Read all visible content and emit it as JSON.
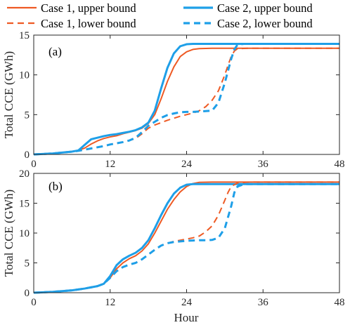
{
  "chart_data": [
    {
      "panel_label": "(a)",
      "type": "line",
      "xlabel": "",
      "ylabel": "Total CCE (GWh)",
      "xlim": [
        0,
        48
      ],
      "ylim": [
        0,
        15
      ],
      "xticks": [
        0,
        12,
        24,
        36,
        48
      ],
      "yticks": [
        0,
        5,
        10,
        15
      ],
      "grid": false,
      "series": [
        {
          "name": "Case 1, upper bound",
          "color": "#EE5A24",
          "style": "solid",
          "x": [
            0,
            3,
            6,
            7,
            8,
            9,
            10,
            11,
            12,
            13,
            14,
            15,
            16,
            17,
            18,
            19,
            20,
            21,
            22,
            23,
            24,
            25,
            26,
            28,
            32,
            48
          ],
          "y": [
            0,
            0.12,
            0.35,
            0.5,
            0.8,
            1.3,
            1.7,
            2.0,
            2.2,
            2.35,
            2.6,
            2.8,
            3.0,
            3.3,
            3.9,
            5.0,
            7.0,
            9.2,
            11.0,
            12.3,
            12.9,
            13.2,
            13.3,
            13.35,
            13.35,
            13.35
          ]
        },
        {
          "name": "Case 2, upper bound",
          "color": "#1E9FE8",
          "style": "solid",
          "x": [
            0,
            3,
            6,
            7,
            8,
            9,
            10,
            11,
            12,
            13,
            14,
            15,
            16,
            17,
            18,
            19,
            20,
            21,
            22,
            23,
            24,
            25,
            26,
            28,
            32,
            48
          ],
          "y": [
            0,
            0.12,
            0.35,
            0.5,
            1.2,
            1.9,
            2.1,
            2.3,
            2.45,
            2.55,
            2.7,
            2.85,
            3.05,
            3.4,
            4.0,
            5.5,
            8.3,
            10.9,
            12.7,
            13.6,
            13.85,
            13.9,
            13.9,
            13.9,
            13.9,
            13.9
          ]
        },
        {
          "name": "Case 1, lower bound",
          "color": "#EE5A24",
          "style": "dashed",
          "x": [
            0,
            3,
            6,
            7,
            8,
            9,
            10,
            11,
            12,
            13,
            14,
            15,
            16,
            17,
            18,
            19,
            20,
            21,
            22,
            23,
            24,
            25,
            26,
            27,
            28,
            29,
            30,
            30.5,
            31,
            31.5,
            32,
            34,
            48
          ],
          "y": [
            0,
            0.12,
            0.35,
            0.45,
            0.6,
            0.75,
            0.9,
            1.05,
            1.25,
            1.4,
            1.55,
            1.75,
            2.0,
            2.6,
            3.3,
            3.7,
            4.0,
            4.3,
            4.55,
            4.8,
            5.0,
            5.2,
            5.5,
            6.0,
            6.8,
            8.0,
            10.0,
            11.2,
            12.3,
            13.0,
            13.3,
            13.35,
            13.35
          ]
        },
        {
          "name": "Case 2, lower bound",
          "color": "#1E9FE8",
          "style": "dashed",
          "x": [
            0,
            3,
            6,
            7,
            8,
            9,
            10,
            11,
            12,
            13,
            14,
            15,
            16,
            17,
            18,
            19,
            20,
            21,
            22,
            23,
            24,
            25,
            26,
            27,
            28,
            29,
            30,
            31,
            31.5,
            32,
            33,
            48
          ],
          "y": [
            0,
            0.12,
            0.35,
            0.45,
            0.6,
            0.75,
            0.9,
            1.05,
            1.25,
            1.4,
            1.55,
            1.75,
            2.1,
            2.8,
            3.6,
            4.1,
            4.6,
            4.95,
            5.15,
            5.3,
            5.35,
            5.35,
            5.4,
            5.45,
            5.5,
            6.5,
            9.0,
            12.0,
            13.2,
            13.8,
            13.9,
            13.9
          ]
        }
      ]
    },
    {
      "panel_label": "(b)",
      "type": "line",
      "xlabel": "Hour",
      "ylabel": "Total CCE (GWh)",
      "xlim": [
        0,
        48
      ],
      "ylim": [
        0,
        20
      ],
      "xticks": [
        0,
        12,
        24,
        36,
        48
      ],
      "yticks": [
        0,
        5,
        10,
        15,
        20
      ],
      "grid": false,
      "series": [
        {
          "name": "Case 1, upper bound",
          "color": "#EE5A24",
          "style": "solid",
          "x": [
            0,
            3,
            6,
            8,
            10,
            11,
            12,
            13,
            14,
            15,
            16,
            17,
            18,
            19,
            20,
            21,
            22,
            23,
            24,
            25,
            26,
            28,
            32,
            48
          ],
          "y": [
            0,
            0.15,
            0.4,
            0.7,
            1.1,
            1.5,
            2.5,
            4.0,
            5.0,
            5.7,
            6.2,
            7.0,
            8.2,
            10.0,
            12.0,
            14.0,
            15.6,
            16.9,
            17.8,
            18.3,
            18.5,
            18.55,
            18.55,
            18.55
          ]
        },
        {
          "name": "Case 2, upper bound",
          "color": "#1E9FE8",
          "style": "solid",
          "x": [
            0,
            3,
            6,
            8,
            10,
            11,
            12,
            13,
            14,
            15,
            16,
            17,
            18,
            19,
            20,
            21,
            22,
            23,
            24,
            25,
            26,
            28,
            32,
            48
          ],
          "y": [
            0,
            0.15,
            0.4,
            0.7,
            1.1,
            1.5,
            2.8,
            4.6,
            5.6,
            6.2,
            6.7,
            7.5,
            8.8,
            10.8,
            13.0,
            15.0,
            16.6,
            17.6,
            18.1,
            18.2,
            18.2,
            18.2,
            18.2,
            18.2
          ]
        },
        {
          "name": "Case 1, lower bound",
          "color": "#EE5A24",
          "style": "dashed",
          "x": [
            0,
            3,
            6,
            8,
            10,
            11,
            12,
            13,
            14,
            15,
            16,
            17,
            18,
            19,
            20,
            21,
            22,
            23,
            24,
            25,
            26,
            27,
            28,
            29,
            30,
            30.5,
            31,
            32,
            34,
            48
          ],
          "y": [
            0,
            0.15,
            0.4,
            0.7,
            1.1,
            1.5,
            2.5,
            3.6,
            4.3,
            4.7,
            5.0,
            5.6,
            6.4,
            7.2,
            7.9,
            8.3,
            8.6,
            8.8,
            9.0,
            9.2,
            9.5,
            10.2,
            11.2,
            13.0,
            15.5,
            16.8,
            17.8,
            18.4,
            18.55,
            18.55
          ]
        },
        {
          "name": "Case 2, lower bound",
          "color": "#1E9FE8",
          "style": "dashed",
          "x": [
            0,
            3,
            6,
            8,
            10,
            11,
            12,
            13,
            14,
            15,
            16,
            17,
            18,
            19,
            20,
            21,
            22,
            23,
            24,
            25,
            26,
            27,
            28,
            29,
            30,
            31,
            31.5,
            32,
            33,
            48
          ],
          "y": [
            0,
            0.15,
            0.4,
            0.7,
            1.1,
            1.5,
            2.5,
            3.6,
            4.3,
            4.7,
            5.0,
            5.6,
            6.4,
            7.2,
            7.9,
            8.3,
            8.5,
            8.6,
            8.7,
            8.75,
            8.8,
            8.8,
            8.85,
            9.2,
            10.8,
            14.5,
            16.8,
            17.8,
            18.2,
            18.2
          ]
        }
      ]
    }
  ],
  "legend": {
    "placement": "top",
    "entries": [
      {
        "label": "Case 1, upper bound",
        "color": "#EE5A24",
        "style": "solid"
      },
      {
        "label": "Case 2, upper bound",
        "color": "#1E9FE8",
        "style": "solid"
      },
      {
        "label": "Case 1, lower bound",
        "color": "#EE5A24",
        "style": "dashed"
      },
      {
        "label": "Case 2, lower bound",
        "color": "#1E9FE8",
        "style": "dashed"
      }
    ]
  }
}
